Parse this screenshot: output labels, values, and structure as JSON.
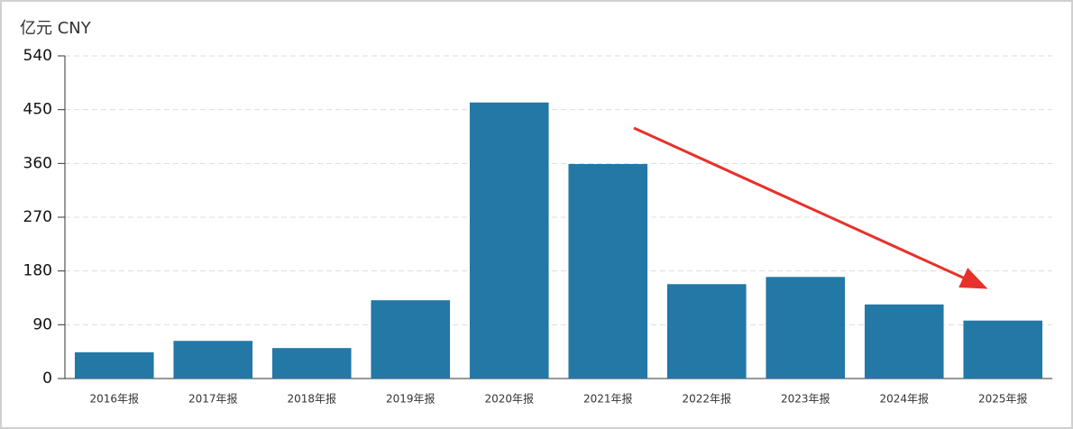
{
  "chart_data": {
    "type": "bar",
    "y_label": "亿元  CNY",
    "categories": [
      "2016年报",
      "2017年报",
      "2018年报",
      "2019年报",
      "2020年报",
      "2021年报",
      "2022年报",
      "2023年报",
      "2024年报",
      "2025年报"
    ],
    "values": [
      44,
      63,
      51,
      131,
      462,
      359,
      158,
      170,
      124,
      97
    ],
    "color": "#2378a6",
    "ylim": [
      0,
      540
    ],
    "yticks": [
      0,
      90,
      180,
      270,
      360,
      450,
      540
    ],
    "grid": true
  }
}
